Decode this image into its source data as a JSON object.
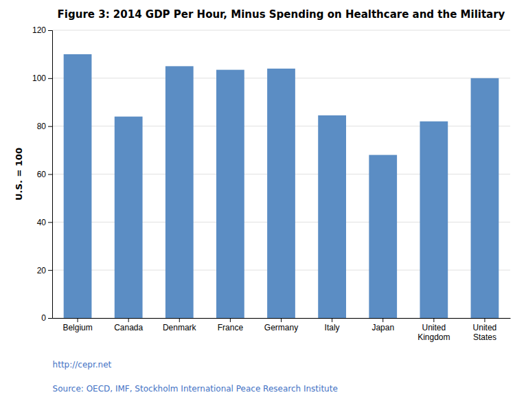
{
  "chart_data": {
    "type": "bar",
    "title": "Figure 3: 2014 GDP Per Hour, Minus Spending on Healthcare and the Military",
    "categories": [
      "Belgium",
      "Canada",
      "Denmark",
      "France",
      "Germany",
      "Italy",
      "Japan",
      "United\nKingdom",
      "United\nStates"
    ],
    "values": [
      110,
      84,
      105,
      103.5,
      104,
      84.5,
      68,
      82,
      100
    ],
    "color": "#5b8dc4",
    "ylabel": "U.S. = 100",
    "ylim": [
      0,
      120
    ],
    "yticks": [
      0,
      20,
      40,
      60,
      80,
      100,
      120
    ],
    "grid": true,
    "annotations": [
      "http://cepr.net",
      "Source: OECD, IMF, Stockholm International Peace Research Institute"
    ]
  }
}
